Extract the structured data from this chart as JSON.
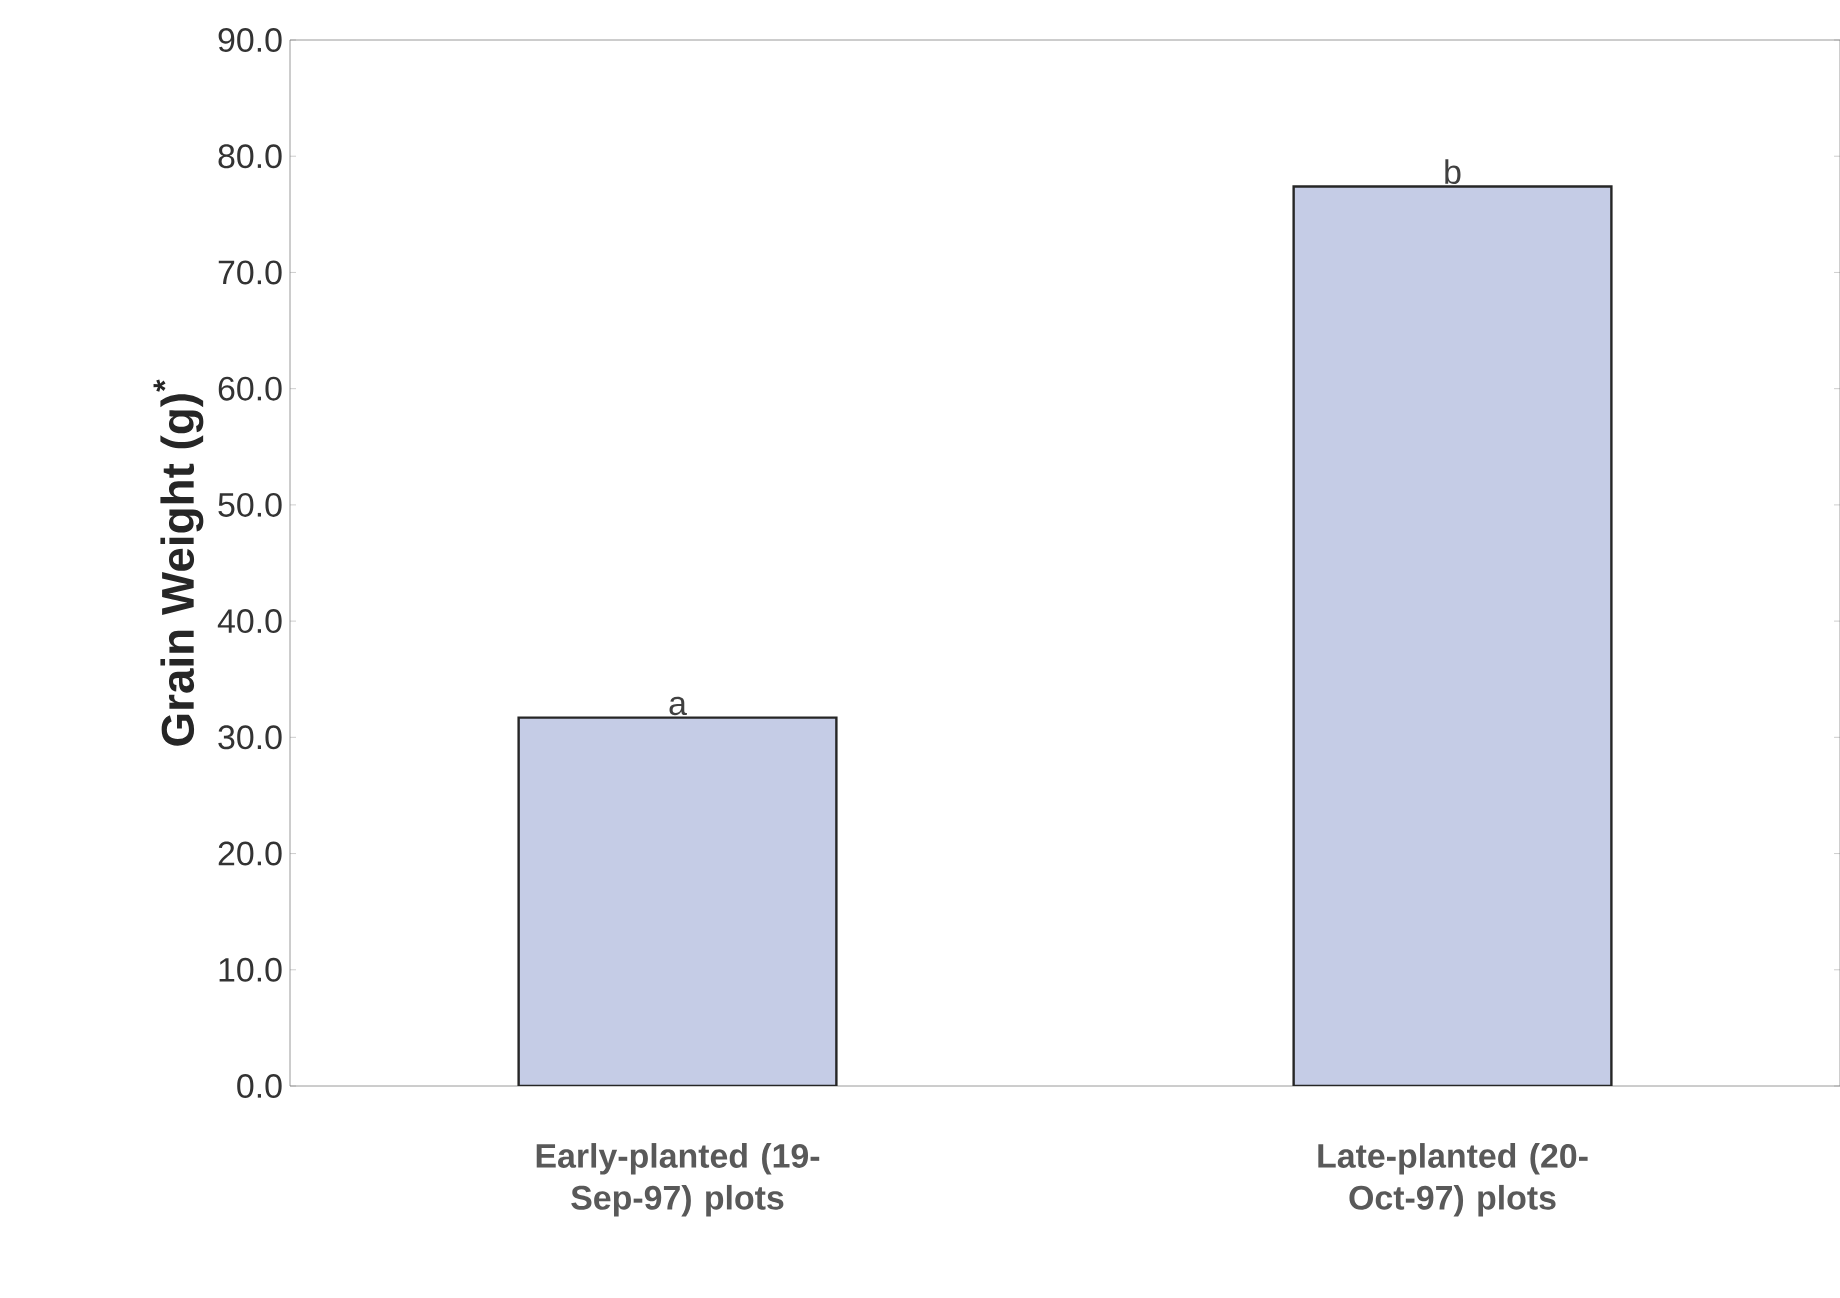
{
  "chart_data": {
    "type": "bar",
    "ylabel": "Grain Weight (g)$^{*}$",
    "categories": [
      "Early-planted (19-Sep-97) plots",
      "Late-planted (20-Oct-97) plots"
    ],
    "values": [
      31.7,
      77.4
    ],
    "color": "#c5cce6",
    "ylim": [
      0,
      90
    ],
    "yticks": [
      {
        "value": 0,
        "label": "0.0"
      },
      {
        "value": 10,
        "label": "10.0"
      },
      {
        "value": 20,
        "label": "20.0"
      },
      {
        "value": 30,
        "label": "30.0"
      },
      {
        "value": 40,
        "label": "40.0"
      },
      {
        "value": 50,
        "label": "50.0"
      },
      {
        "value": 60,
        "label": "60.0"
      },
      {
        "value": 70,
        "label": "70.0"
      },
      {
        "value": 80,
        "label": "80.0"
      },
      {
        "value": 90,
        "label": "90.0"
      }
    ],
    "annotations": [
      {
        "text": "a",
        "x": "Early-planted (19-Sep-97) plots",
        "y": 31.7
      },
      {
        "text": "b",
        "x": "Late-planted (20-Oct-97) plots",
        "y": 77.4
      }
    ],
    "grid": false
  }
}
